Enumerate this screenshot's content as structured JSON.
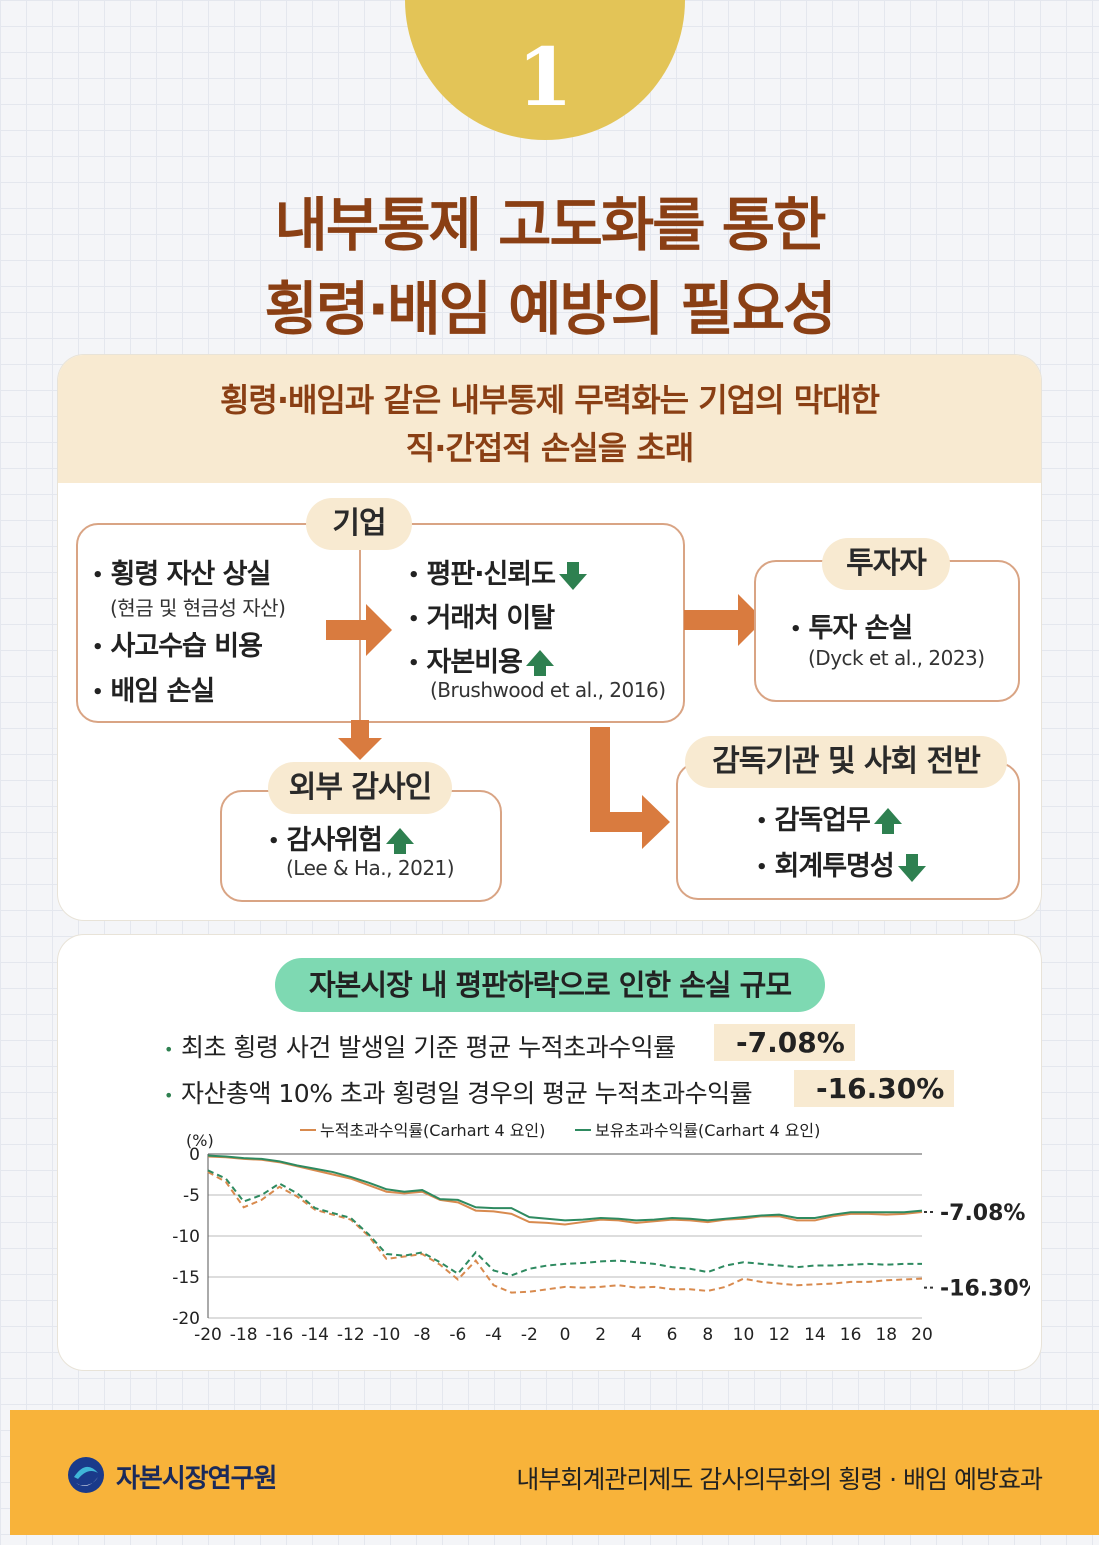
{
  "badge": {
    "number": "1"
  },
  "title": {
    "line1": "내부통제 고도화를 통한",
    "line2": "횡령·배임 예방의 필요성"
  },
  "section1": {
    "subtitle_line1": "횡령·배임과 같은 내부통제 무력화는 기업의 막대한",
    "subtitle_line2": "직·간접적 손실을 초래",
    "company": {
      "label": "기업",
      "left_items": [
        "횡령 자산 상실",
        "사고수습 비용",
        "배임 손실"
      ],
      "left_note": "(현금 및 현금성 자산)",
      "right_items": [
        "평판·신뢰도",
        "거래처 이탈",
        "자본비용"
      ],
      "right_citation": "(Brushwood et al., 2016)"
    },
    "investor": {
      "label": "투자자",
      "item": "투자 손실",
      "citation": "(Dyck et al., 2023)"
    },
    "auditor": {
      "label": "외부 감사인",
      "item": "감사위험",
      "citation": "(Lee & Ha., 2021)"
    },
    "regulator": {
      "label": "감독기관 및 사회 전반",
      "items": [
        "감독업무",
        "회계투명성"
      ]
    },
    "bullet": "•"
  },
  "section2": {
    "label": "자본시장 내 평판하락으로 인한 손실 규모",
    "stats": [
      {
        "text": "최초 횡령 사건 발생일 기준 평균 누적초과수익률",
        "value": "-7.08%"
      },
      {
        "text": "자산총액 10% 초과 횡령일 경우의 평균 누적초과수익률",
        "value": "-16.30%"
      }
    ]
  },
  "chart_data": {
    "type": "line",
    "ylabel": "(%)",
    "ylim": [
      -20,
      0
    ],
    "yticks": [
      0,
      -5,
      -10,
      -15,
      -20
    ],
    "xlim": [
      -20,
      20
    ],
    "xticks": [
      -20,
      -18,
      -16,
      -14,
      -12,
      -10,
      -8,
      -6,
      -4,
      -2,
      0,
      2,
      4,
      6,
      8,
      10,
      12,
      14,
      16,
      18,
      20
    ],
    "x": [
      -20,
      -19,
      -18,
      -17,
      -16,
      -15,
      -14,
      -13,
      -12,
      -11,
      -10,
      -9,
      -8,
      -7,
      -6,
      -5,
      -4,
      -3,
      -2,
      -1,
      0,
      1,
      2,
      3,
      4,
      5,
      6,
      7,
      8,
      9,
      10,
      11,
      12,
      13,
      14,
      15,
      16,
      17,
      18,
      19,
      20
    ],
    "legend": [
      "누적초과수익률(Carhart 4 요인)",
      "보유초과수익률(Carhart 4 요인)"
    ],
    "series": [
      {
        "name": "누적초과수익률(Carhart 4 요인) - 전체",
        "color": "#d88a4e",
        "dash": false,
        "values": [
          -0.3,
          -0.4,
          -0.6,
          -0.7,
          -1.0,
          -1.5,
          -2.0,
          -2.5,
          -3.0,
          -3.8,
          -4.6,
          -4.8,
          -4.6,
          -5.6,
          -5.9,
          -6.9,
          -7.0,
          -7.3,
          -8.3,
          -8.4,
          -8.6,
          -8.3,
          -8.0,
          -8.1,
          -8.4,
          -8.2,
          -8.0,
          -8.1,
          -8.3,
          -8.0,
          -7.9,
          -7.6,
          -7.6,
          -8.1,
          -8.1,
          -7.6,
          -7.3,
          -7.3,
          -7.4,
          -7.3,
          -7.08
        ]
      },
      {
        "name": "보유초과수익률(Carhart 4 요인) - 전체",
        "color": "#2e8a60",
        "dash": false,
        "values": [
          -0.2,
          -0.3,
          -0.5,
          -0.6,
          -0.9,
          -1.4,
          -1.8,
          -2.2,
          -2.8,
          -3.5,
          -4.3,
          -4.6,
          -4.4,
          -5.5,
          -5.6,
          -6.5,
          -6.6,
          -6.6,
          -7.7,
          -7.9,
          -8.1,
          -8.0,
          -7.8,
          -7.9,
          -8.1,
          -8.0,
          -7.8,
          -7.9,
          -8.1,
          -7.9,
          -7.7,
          -7.5,
          -7.4,
          -7.8,
          -7.8,
          -7.4,
          -7.1,
          -7.1,
          -7.1,
          -7.1,
          -6.9
        ]
      },
      {
        "name": "누적초과수익률(Carhart 4 요인) - 10% 초과",
        "color": "#d88a4e",
        "dash": true,
        "values": [
          -2.2,
          -3.4,
          -6.5,
          -5.6,
          -4.0,
          -5.2,
          -6.8,
          -7.4,
          -8.0,
          -10.0,
          -12.8,
          -12.5,
          -12.2,
          -13.5,
          -15.3,
          -13.0,
          -16.0,
          -16.9,
          -16.8,
          -16.5,
          -16.2,
          -16.3,
          -16.2,
          -16.0,
          -16.3,
          -16.2,
          -16.5,
          -16.5,
          -16.7,
          -16.2,
          -15.2,
          -15.6,
          -15.8,
          -16.0,
          -15.9,
          -15.8,
          -15.6,
          -15.6,
          -15.4,
          -15.3,
          -15.2
        ]
      },
      {
        "name": "보유초과수익률(Carhart 4 요인) - 10% 초과",
        "color": "#2e8a60",
        "dash": true,
        "values": [
          -2.0,
          -3.0,
          -5.8,
          -5.0,
          -3.6,
          -4.8,
          -6.6,
          -7.2,
          -7.8,
          -9.8,
          -12.2,
          -12.4,
          -12.0,
          -13.2,
          -14.6,
          -12.0,
          -14.2,
          -14.8,
          -14.0,
          -13.6,
          -13.4,
          -13.3,
          -13.1,
          -13.0,
          -13.2,
          -13.4,
          -13.8,
          -14.0,
          -14.4,
          -13.6,
          -13.2,
          -13.4,
          -13.6,
          -13.8,
          -13.6,
          -13.6,
          -13.5,
          -13.4,
          -13.5,
          -13.4,
          -13.4
        ]
      }
    ],
    "annotations": [
      "-7.08%",
      "-16.30%"
    ]
  },
  "footer": {
    "logo_text": "자본시장연구원",
    "right_text": "내부회계관리제도 감사의무화의 횡령 · 배임 예방효과"
  },
  "colors": {
    "title": "#8a3f14",
    "accent": "#d97b3f",
    "green": "#2e8050",
    "footer": "#f8b33a",
    "label_bg": "#f8ead1",
    "mint": "#7ed9b2"
  }
}
